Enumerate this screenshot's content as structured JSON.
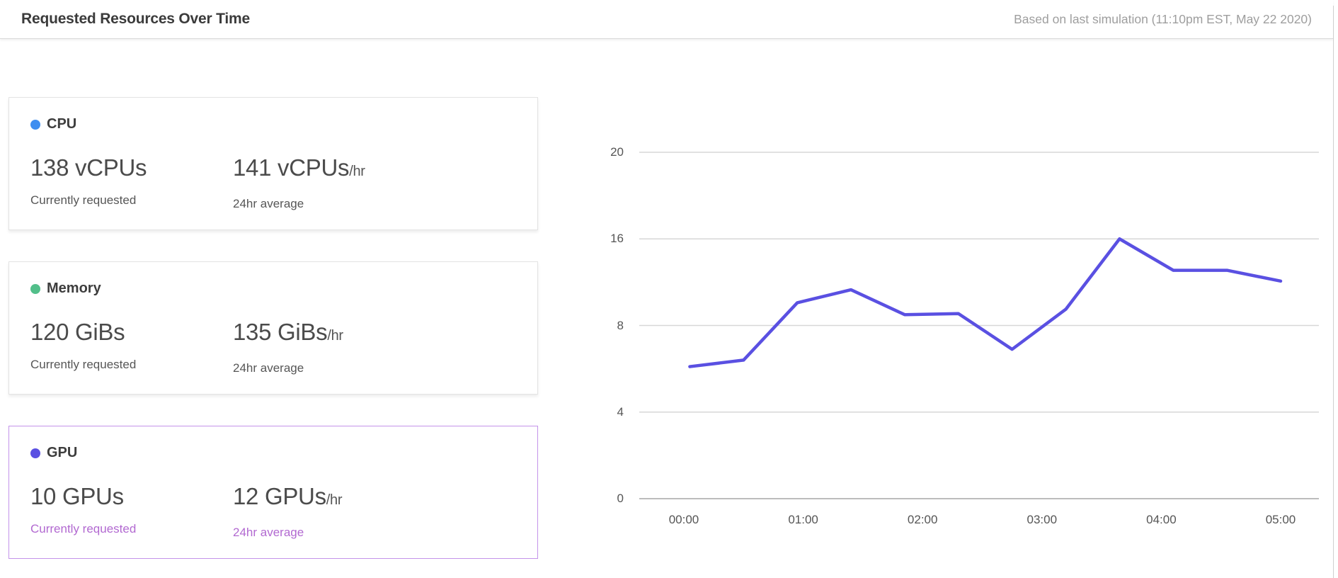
{
  "header": {
    "title": "Requested Resources Over Time",
    "subtitle": "Based on last simulation (11:10pm EST, May 22 2020)"
  },
  "cards": [
    {
      "id": "cpu",
      "label": "CPU",
      "dot_color": "#3e8ef0",
      "selected": false,
      "current": {
        "value": "138 vCPUs",
        "caption": "Currently requested"
      },
      "average": {
        "value": "141 vCPUs",
        "per": "/hr",
        "caption": "24hr average"
      }
    },
    {
      "id": "memory",
      "label": "Memory",
      "dot_color": "#52bf8a",
      "selected": false,
      "current": {
        "value": "120 GiBs",
        "caption": "Currently requested"
      },
      "average": {
        "value": "135 GiBs",
        "per": "/hr",
        "caption": "24hr average"
      }
    },
    {
      "id": "gpu",
      "label": "GPU",
      "dot_color": "#5a50e2",
      "selected": true,
      "selected_border_color": "#c493ea",
      "selected_text_color": "#b269d1",
      "current": {
        "value": "10 GPUs",
        "caption": "Currently requested"
      },
      "average": {
        "value": "12 GPUs",
        "per": "/hr",
        "caption": "24hr average"
      }
    }
  ],
  "chart_data": {
    "type": "line",
    "title": "Requested Resources Over Time",
    "selected_series": "GPU",
    "unit": "GPUs",
    "grid": "horizontal-only",
    "legend": "none",
    "y_ticks": [
      0,
      4,
      8,
      16,
      20
    ],
    "y_tick_note": "tick values rendered at even spacing as in source chart",
    "x_tick_labels": [
      "00:00",
      "01:00",
      "02:00",
      "03:00",
      "04:00",
      "05:00"
    ],
    "x_tick_hours": [
      0,
      1,
      2,
      3,
      4,
      5
    ],
    "series": [
      {
        "name": "GPU",
        "color": "#5a50e2",
        "x_hours": [
          0.05,
          0.5,
          0.95,
          1.4,
          1.85,
          2.3,
          2.75,
          3.2,
          3.65,
          4.1,
          4.55,
          5.0
        ],
        "values": [
          6.1,
          6.4,
          10.1,
          11.3,
          9.0,
          9.1,
          6.9,
          9.5,
          16,
          13.1,
          13.1,
          12.1
        ]
      }
    ]
  }
}
